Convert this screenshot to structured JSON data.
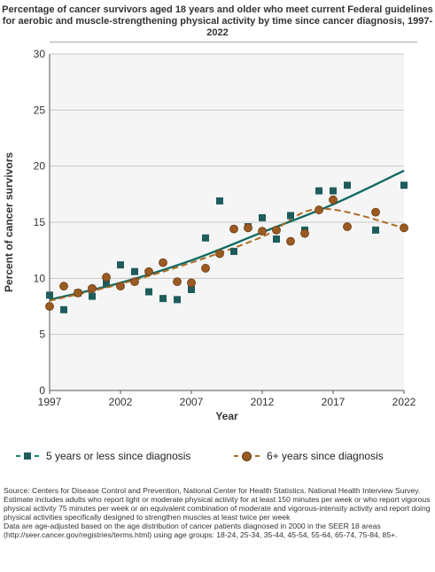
{
  "title": "Percentage of cancer survivors aged 18 years and older who meet current Federal guidelines for aerobic and muscle-strengthening physical activity by time since cancer diagnosis, 1997-2022",
  "colors": {
    "series1": "#1f5c5c",
    "series1_trend": "#1a8a7a",
    "series2": "#9b5a22",
    "series2_trend": "#b06a20"
  },
  "chart_data": {
    "type": "scatter",
    "title": "Percentage of cancer survivors aged 18 years and older who meet current Federal guidelines for aerobic and muscle-strengthening physical activity by time since cancer diagnosis, 1997-2022",
    "xlabel": "Year",
    "ylabel": "Percent of cancer survivors",
    "xlim": [
      1997,
      2022
    ],
    "ylim": [
      0,
      30
    ],
    "x_ticks": [
      1997,
      2002,
      2007,
      2012,
      2017,
      2022
    ],
    "y_ticks": [
      0,
      5,
      10,
      15,
      20,
      25,
      30
    ],
    "grid": true,
    "legend_position": "bottom",
    "series": [
      {
        "name": "5 years or less since diagnosis",
        "marker": "square",
        "x": [
          1997,
          1998,
          1999,
          2000,
          2001,
          2002,
          2003,
          2004,
          2005,
          2006,
          2007,
          2008,
          2009,
          2010,
          2011,
          2012,
          2013,
          2014,
          2015,
          2016,
          2017,
          2018,
          2020,
          2022
        ],
        "y": [
          8.5,
          7.2,
          8.7,
          8.4,
          9.6,
          11.2,
          10.6,
          8.8,
          8.2,
          8.1,
          9.0,
          13.6,
          16.9,
          12.4,
          14.6,
          15.4,
          13.5,
          15.6,
          14.3,
          17.8,
          17.8,
          18.3,
          14.3,
          18.3
        ],
        "trend": {
          "style": "solid",
          "x": [
            1997,
            2002,
            2007,
            2012,
            2017,
            2022
          ],
          "y": [
            8.1,
            9.6,
            11.6,
            14.1,
            16.6,
            19.6
          ]
        }
      },
      {
        "name": "6+ years since diagnosis",
        "marker": "circle",
        "x": [
          1997,
          1998,
          1999,
          2000,
          2001,
          2002,
          2003,
          2004,
          2005,
          2006,
          2007,
          2008,
          2009,
          2010,
          2011,
          2012,
          2013,
          2014,
          2015,
          2016,
          2017,
          2018,
          2020,
          2022
        ],
        "y": [
          7.5,
          9.3,
          8.7,
          9.1,
          10.1,
          9.3,
          9.7,
          10.6,
          11.4,
          9.7,
          9.6,
          10.9,
          12.2,
          14.4,
          14.5,
          14.2,
          14.3,
          13.3,
          14.0,
          16.1,
          17.0,
          14.6,
          15.9,
          14.5
        ],
        "trend": {
          "style": "dashed",
          "x": [
            1997,
            2002,
            2007,
            2012,
            2016,
            2022
          ],
          "y": [
            8.0,
            9.5,
            11.4,
            13.7,
            16.2,
            14.5
          ]
        }
      }
    ]
  },
  "legend": [
    {
      "label": "5 years or less since diagnosis"
    },
    {
      "label": "6+ years since diagnosis"
    }
  ],
  "source": [
    "Source: Centers for Disease Control and Prevention, National Center for Health Statistics. National Health Interview Survey.",
    "Estimate includes adults who report light or moderate physical activity for at least 150 minutes per week or who report vigorous physical activity 75 minutes per week or an equivalent combination of moderate and vigorous-intensity activity and report doing physical activities specifically designed to strengthen muscles at least twice per week",
    "Data are age-adjusted based on the age distribution of cancer patients diagnosed in 2000 in the SEER 18 areas (http://seer.cancer.gov/registries/terms.html) using age groups: 18-24, 25-34, 35-44, 45-54, 55-64, 65-74, 75-84, 85+."
  ]
}
